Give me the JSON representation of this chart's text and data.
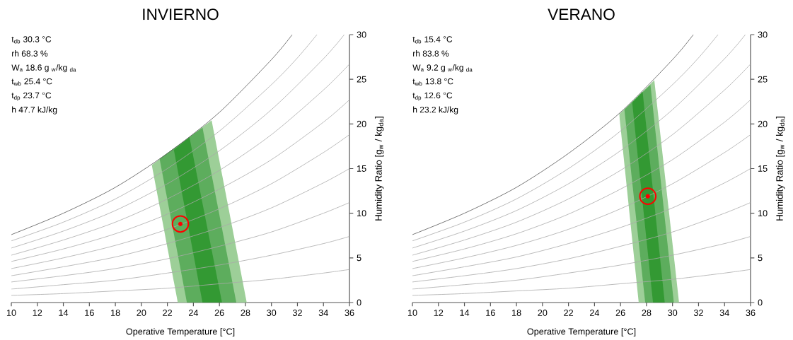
{
  "chart_data": [
    {
      "type": "line",
      "title": "INVIERNO",
      "xlabel": "Operative Temperature [°C]",
      "ylabel": "Humidity Ratio [g$_{w}$ / kg$_{da}$]",
      "xlim": [
        10,
        36
      ],
      "ylim": [
        0,
        30
      ],
      "xticks": [
        10,
        12,
        14,
        16,
        18,
        20,
        22,
        24,
        26,
        28,
        30,
        32,
        34,
        36
      ],
      "yticks": [
        0,
        5,
        10,
        15,
        20,
        25,
        30
      ],
      "annotations": [
        "t$_{db}$   30.3  °C",
        "rh    68.3  %",
        "W$_{a}$   18.6  g $_{w}$/kg $_{da}$",
        "t$_{wb}$   25.4  °C",
        "t$_{dp}$   23.7  °C",
        "h     47.7  kJ/kg"
      ],
      "series": [
        {
          "type": "area",
          "color": "#9dcf98",
          "x": [
            22.8,
            28.1,
            25.4,
            20.8
          ],
          "values": [
            0,
            0,
            20.4,
            15.4
          ]
        },
        {
          "type": "area",
          "color": "#5dad5d",
          "x": [
            23.5,
            27.3,
            24.7,
            21.4
          ],
          "values": [
            0,
            0,
            19.6,
            16.1
          ]
        },
        {
          "type": "area",
          "color": "#339933",
          "x": [
            24.7,
            26.2,
            23.7,
            22.5
          ],
          "values": [
            0,
            0,
            18.5,
            17.1
          ]
        },
        {
          "color": "#aaaaaa",
          "x": [
            10,
            14,
            18,
            22,
            26,
            30,
            34,
            36
          ],
          "values": [
            0.8,
            1.0,
            1.3,
            1.6,
            2.1,
            2.6,
            3.3,
            3.7
          ]
        },
        {
          "color": "#aaaaaa",
          "x": [
            10,
            14,
            18,
            22,
            26,
            30,
            34,
            36
          ],
          "values": [
            1.5,
            2.0,
            2.5,
            3.3,
            4.2,
            5.3,
            6.6,
            7.4
          ]
        },
        {
          "color": "#aaaaaa",
          "x": [
            10,
            14,
            18,
            22,
            26,
            30,
            34,
            36
          ],
          "values": [
            2.3,
            3.0,
            3.8,
            4.9,
            6.3,
            7.9,
            10.0,
            11.2
          ]
        },
        {
          "color": "#aaaaaa",
          "x": [
            10,
            14,
            18,
            22,
            26,
            30,
            34,
            36
          ],
          "values": [
            3.0,
            4.0,
            5.1,
            6.6,
            8.4,
            10.6,
            13.4,
            15.0
          ]
        },
        {
          "color": "#aaaaaa",
          "x": [
            10,
            14,
            18,
            22,
            26,
            30,
            34,
            36
          ],
          "values": [
            3.8,
            5.0,
            6.4,
            8.2,
            10.5,
            13.3,
            16.8,
            18.8
          ]
        },
        {
          "color": "#aaaaaa",
          "x": [
            10,
            14,
            18,
            22,
            26,
            30,
            34,
            36
          ],
          "values": [
            4.6,
            6.0,
            7.7,
            9.9,
            12.7,
            16.0,
            20.2,
            22.7
          ]
        },
        {
          "color": "#aaaaaa",
          "x": [
            10,
            14,
            18,
            22,
            26,
            30,
            34,
            36
          ],
          "values": [
            5.3,
            7.0,
            9.0,
            11.6,
            14.8,
            18.8,
            23.8,
            26.7
          ]
        },
        {
          "color": "#aaaaaa",
          "x": [
            10,
            14,
            18,
            22,
            26,
            30,
            34,
            35.6
          ],
          "values": [
            6.1,
            8.0,
            10.3,
            13.3,
            17.0,
            21.6,
            27.3,
            30
          ]
        },
        {
          "color": "#aaaaaa",
          "x": [
            10,
            14,
            18,
            22,
            26,
            30,
            32,
            33.5
          ],
          "values": [
            6.9,
            9.0,
            11.6,
            15.0,
            19.2,
            24.4,
            27.4,
            30
          ]
        },
        {
          "color": "#555555",
          "x": [
            10,
            14,
            18,
            22,
            26,
            30,
            31.6
          ],
          "values": [
            7.6,
            10.0,
            12.9,
            16.7,
            21.3,
            27.2,
            30
          ]
        },
        {
          "type": "scatter",
          "marker": "circle",
          "color": "#ff0000",
          "x": [
            23.0
          ],
          "values": [
            8.8
          ]
        }
      ]
    },
    {
      "type": "line",
      "title": "VERANO",
      "xlabel": "Operative Temperature [°C]",
      "ylabel": "Humidity Ratio [g$_{w}$ / kg$_{da}$]",
      "xlim": [
        10,
        36
      ],
      "ylim": [
        0,
        30
      ],
      "xticks": [
        10,
        12,
        14,
        16,
        18,
        20,
        22,
        24,
        26,
        28,
        30,
        32,
        34,
        36
      ],
      "yticks": [
        0,
        5,
        10,
        15,
        20,
        25,
        30
      ],
      "annotations": [
        "t$_{db}$   15.4  °C",
        "rh    83.8  %",
        "W$_{a}$   9.2   g $_{w}$/kg $_{da}$",
        "t$_{wb}$   13.8  °C",
        "t$_{dp}$   12.6  °C",
        "h     23.2  kJ/kg"
      ],
      "series": [
        {
          "type": "area",
          "color": "#9dcf98",
          "x": [
            27.4,
            30.5,
            28.6,
            25.9
          ],
          "values": [
            0,
            0,
            24.9,
            21.1
          ]
        },
        {
          "type": "area",
          "color": "#5dad5d",
          "x": [
            27.9,
            30.1,
            28.3,
            26.3
          ],
          "values": [
            0,
            0,
            24.4,
            21.6
          ]
        },
        {
          "type": "area",
          "color": "#339933",
          "x": [
            28.5,
            29.4,
            27.7,
            26.9
          ],
          "values": [
            0,
            0,
            23.6,
            22.4
          ]
        },
        {
          "color": "#aaaaaa",
          "x": [
            10,
            14,
            18,
            22,
            26,
            30,
            34,
            36
          ],
          "values": [
            0.8,
            1.0,
            1.3,
            1.6,
            2.1,
            2.6,
            3.3,
            3.7
          ]
        },
        {
          "color": "#aaaaaa",
          "x": [
            10,
            14,
            18,
            22,
            26,
            30,
            34,
            36
          ],
          "values": [
            1.5,
            2.0,
            2.5,
            3.3,
            4.2,
            5.3,
            6.6,
            7.4
          ]
        },
        {
          "color": "#aaaaaa",
          "x": [
            10,
            14,
            18,
            22,
            26,
            30,
            34,
            36
          ],
          "values": [
            2.3,
            3.0,
            3.8,
            4.9,
            6.3,
            7.9,
            10.0,
            11.2
          ]
        },
        {
          "color": "#aaaaaa",
          "x": [
            10,
            14,
            18,
            22,
            26,
            30,
            34,
            36
          ],
          "values": [
            3.0,
            4.0,
            5.1,
            6.6,
            8.4,
            10.6,
            13.4,
            15.0
          ]
        },
        {
          "color": "#aaaaaa",
          "x": [
            10,
            14,
            18,
            22,
            26,
            30,
            34,
            36
          ],
          "values": [
            3.8,
            5.0,
            6.4,
            8.2,
            10.5,
            13.3,
            16.8,
            18.8
          ]
        },
        {
          "color": "#aaaaaa",
          "x": [
            10,
            14,
            18,
            22,
            26,
            30,
            34,
            36
          ],
          "values": [
            4.6,
            6.0,
            7.7,
            9.9,
            12.7,
            16.0,
            20.2,
            22.7
          ]
        },
        {
          "color": "#aaaaaa",
          "x": [
            10,
            14,
            18,
            22,
            26,
            30,
            34,
            36
          ],
          "values": [
            5.3,
            7.0,
            9.0,
            11.6,
            14.8,
            18.8,
            23.8,
            26.7
          ]
        },
        {
          "color": "#aaaaaa",
          "x": [
            10,
            14,
            18,
            22,
            26,
            30,
            34,
            35.6
          ],
          "values": [
            6.1,
            8.0,
            10.3,
            13.3,
            17.0,
            21.6,
            27.3,
            30
          ]
        },
        {
          "color": "#aaaaaa",
          "x": [
            10,
            14,
            18,
            22,
            26,
            30,
            32,
            33.5
          ],
          "values": [
            6.9,
            9.0,
            11.6,
            15.0,
            19.2,
            24.4,
            27.4,
            30
          ]
        },
        {
          "color": "#555555",
          "x": [
            10,
            14,
            18,
            22,
            26,
            30,
            31.6
          ],
          "values": [
            7.6,
            10.0,
            12.9,
            16.7,
            21.3,
            27.2,
            30
          ]
        },
        {
          "type": "scatter",
          "marker": "circle",
          "color": "#ff0000",
          "x": [
            28.1
          ],
          "values": [
            11.9
          ]
        }
      ]
    }
  ]
}
